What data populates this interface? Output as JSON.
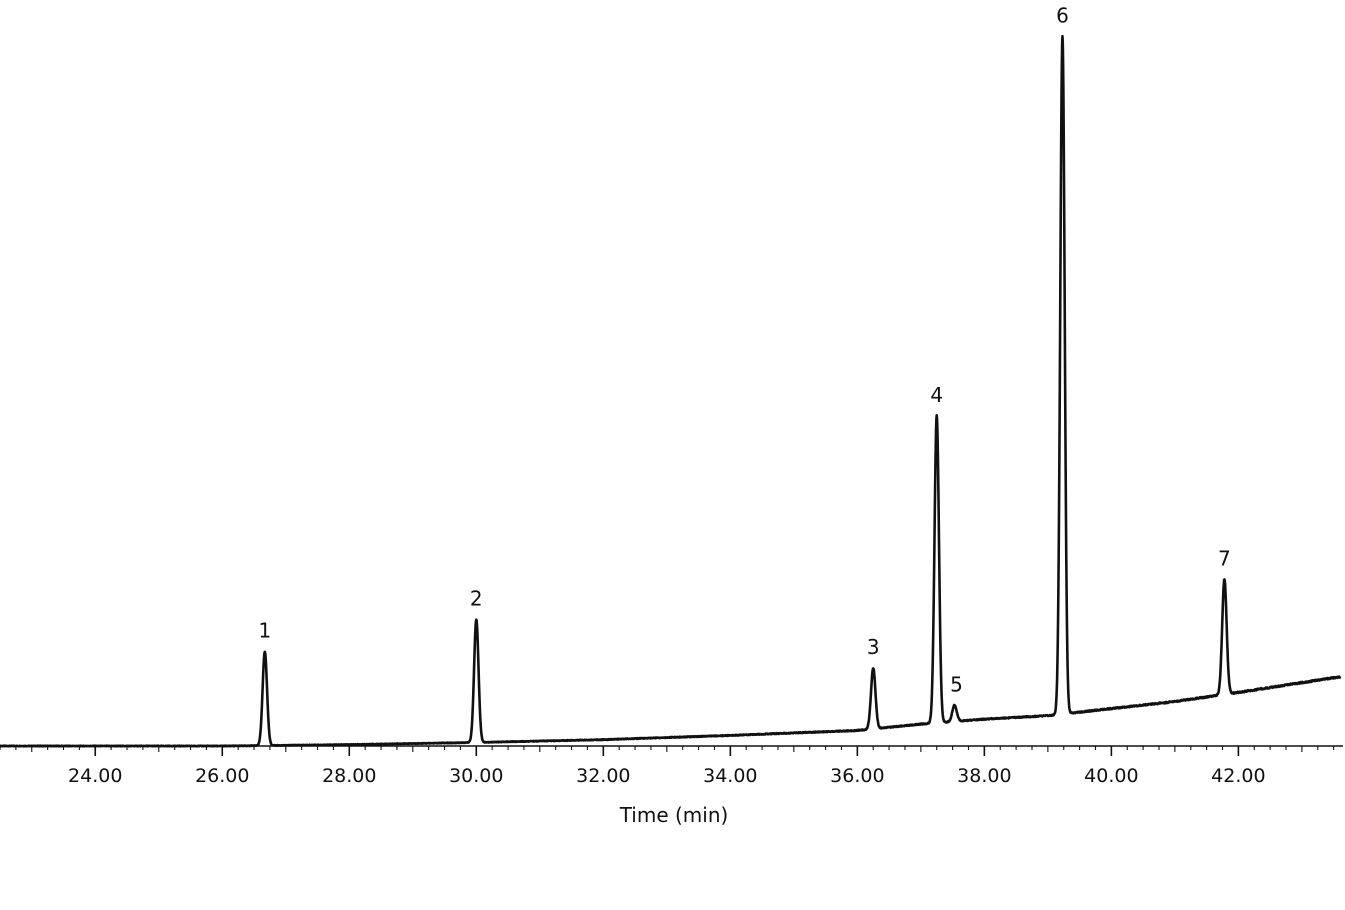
{
  "chart_data": {
    "type": "line",
    "title": "",
    "xlabel": "Time (min)",
    "ylabel": "",
    "xlim": [
      22.5,
      43.6
    ],
    "ylim": [
      0,
      100
    ],
    "grid": false,
    "legend": "none",
    "x_ticks": [
      "24.00",
      "26.00",
      "28.00",
      "30.00",
      "32.00",
      "34.00",
      "36.00",
      "38.00",
      "40.00",
      "42.00"
    ],
    "x_tick_values": [
      24,
      26,
      28,
      30,
      32,
      34,
      36,
      38,
      40,
      42
    ],
    "baseline": [
      {
        "x": 22.5,
        "y": 0.0
      },
      {
        "x": 26.0,
        "y": 0.0
      },
      {
        "x": 28.0,
        "y": 0.2
      },
      {
        "x": 30.0,
        "y": 0.5
      },
      {
        "x": 32.0,
        "y": 0.9
      },
      {
        "x": 34.0,
        "y": 1.5
      },
      {
        "x": 36.0,
        "y": 2.2
      },
      {
        "x": 37.0,
        "y": 3.1
      },
      {
        "x": 38.0,
        "y": 3.8
      },
      {
        "x": 39.0,
        "y": 4.3
      },
      {
        "x": 40.0,
        "y": 5.3
      },
      {
        "x": 41.0,
        "y": 6.3
      },
      {
        "x": 42.0,
        "y": 7.6
      },
      {
        "x": 43.6,
        "y": 9.8
      }
    ],
    "peaks": [
      {
        "label": "1",
        "x": 26.67,
        "height": 13.3
      },
      {
        "label": "2",
        "x": 30.0,
        "height": 17.4
      },
      {
        "label": "3",
        "x": 36.25,
        "height": 8.6
      },
      {
        "label": "4",
        "x": 37.25,
        "height": 43.5
      },
      {
        "label": "5",
        "x": 37.53,
        "height": 2.3
      },
      {
        "label": "6",
        "x": 39.23,
        "height": 96.0
      },
      {
        "label": "7",
        "x": 41.78,
        "height": 16.3
      }
    ],
    "color": "#111111"
  }
}
